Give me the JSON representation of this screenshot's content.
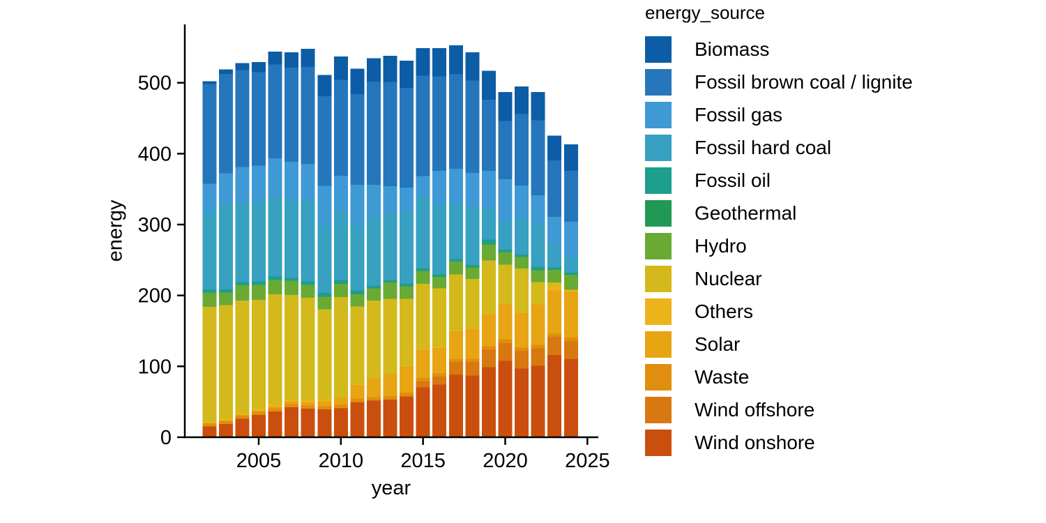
{
  "chart_data": {
    "type": "bar",
    "stacked": true,
    "title": "",
    "xlabel": "year",
    "ylabel": "energy",
    "legend_title": "energy_source",
    "legend_position": "right",
    "grid": false,
    "x": [
      2002,
      2003,
      2004,
      2005,
      2006,
      2007,
      2008,
      2009,
      2010,
      2011,
      2012,
      2013,
      2014,
      2015,
      2016,
      2017,
      2018,
      2019,
      2020,
      2021,
      2022,
      2023,
      2024
    ],
    "x_ticks": [
      2005,
      2010,
      2015,
      2020,
      2025
    ],
    "y_ticks": [
      0,
      100,
      200,
      300,
      400,
      500
    ],
    "ylim": [
      0,
      582
    ],
    "axis_color": "#000000",
    "stack_order_bottom_to_top": [
      "Wind onshore",
      "Wind offshore",
      "Waste",
      "Solar",
      "Others",
      "Nuclear",
      "Hydro",
      "Geothermal",
      "Fossil oil",
      "Fossil hard coal",
      "Fossil gas",
      "Fossil brown coal / lignite",
      "Biomass"
    ],
    "series": [
      {
        "name": "Biomass",
        "color": "#0c5da5",
        "values": [
          4.0,
          6.6,
          10.0,
          14.0,
          18.0,
          21.5,
          26.0,
          30.0,
          33.0,
          36.0,
          33.0,
          37.0,
          38.0,
          39.0,
          40.0,
          41.0,
          40.0,
          41.0,
          41.0,
          39.0,
          40.0,
          35.0,
          37.0
        ]
      },
      {
        "name": "Fossil brown coal / lignite",
        "color": "#2676bc",
        "values": [
          140.4,
          140.0,
          136.5,
          131.8,
          132.4,
          132.8,
          136.6,
          126.7,
          135.0,
          128.0,
          145.7,
          146.9,
          140.9,
          141.6,
          133.4,
          133.1,
          130.0,
          100.4,
          81.9,
          100.8,
          105.8,
          79.7,
          71.9
        ]
      },
      {
        "name": "Fossil gas",
        "color": "#3f99d5",
        "values": [
          40.0,
          43.6,
          50.1,
          51.1,
          54.9,
          53.3,
          50.0,
          55.7,
          52.0,
          57.4,
          44.3,
          37.7,
          33.1,
          29.8,
          48.2,
          49.2,
          47.2,
          53.1,
          58.9,
          46.8,
          41.0,
          38.3,
          49.7
        ]
      },
      {
        "name": "Fossil hard coal",
        "color": "#38a0c1",
        "values": [
          109.1,
          120.3,
          112.1,
          112.1,
          112.0,
          110.5,
          115.5,
          95.1,
          95.4,
          91.6,
          98.3,
          94.7,
          102.3,
          100.6,
          97.6,
          78.5,
          82.9,
          43.8,
          40.6,
          50.8,
          59.9,
          32.8,
          22.0
        ]
      },
      {
        "name": "Fossil oil",
        "color": "#1e9e8d",
        "values": [
          5.0,
          4.3,
          4.9,
          5.0,
          4.9,
          4.3,
          4.9,
          4.9,
          4.9,
          5.0,
          2.9,
          3.1,
          3.1,
          3.1,
          3.1,
          3.1,
          3.1,
          6.4,
          3.1,
          3.1,
          4.1,
          3.1,
          2.8
        ]
      },
      {
        "name": "Geothermal",
        "color": "#219853",
        "values": [
          0,
          0,
          0,
          0,
          0,
          0,
          0.1,
          0.1,
          0.1,
          0.2,
          0.2,
          0.2,
          0.2,
          0.2,
          0.2,
          0.2,
          0.2,
          0.2,
          0.2,
          0.2,
          0.2,
          0.2,
          0.2
        ]
      },
      {
        "name": "Hydro",
        "color": "#69aa34",
        "values": [
          19.6,
          17.7,
          21.4,
          21.3,
          19.9,
          19.7,
          18.2,
          18.0,
          19.2,
          17.2,
          17.5,
          23.1,
          18.3,
          18.3,
          16.4,
          18.1,
          16.4,
          22.7,
          18.0,
          16.3,
          17.0,
          18.0,
          21.4
        ]
      },
      {
        "name": "Nuclear",
        "color": "#d3b91b",
        "values": [
          162.3,
          160.5,
          158.3,
          153.2,
          155.4,
          147.9,
          144.5,
          126.9,
          141.2,
          108.7,
          108.5,
          105.7,
          95.1,
          90.8,
          82.2,
          78.1,
          68.4,
          73.8,
          54.4,
          61.0,
          29.5,
          6.0,
          0
        ]
      },
      {
        "name": "Others",
        "color": "#ebb41b",
        "values": [
          1.7,
          2.5,
          3.2,
          3.2,
          3.4,
          3.0,
          3.0,
          3.2,
          0.8,
          1.9,
          1.1,
          0.6,
          0.8,
          2.2,
          1.8,
          2.0,
          2.0,
          2.0,
          0.2,
          1.6,
          2.0,
          5.1,
          2.2
        ]
      },
      {
        "name": "Solar",
        "color": "#e7a413",
        "values": [
          0.2,
          0.3,
          0.6,
          1.3,
          2.2,
          3.1,
          4.4,
          6.6,
          9.8,
          19.6,
          26.4,
          31.0,
          36.1,
          40.0,
          36.0,
          39.4,
          42.0,
          45.0,
          50.7,
          49.0,
          57.0,
          61.0,
          65.0
        ]
      },
      {
        "name": "Waste",
        "color": "#e08e0e",
        "values": [
          4.3,
          4.5,
          4.5,
          4.5,
          4.5,
          4.5,
          4.5,
          4.5,
          4.5,
          4.5,
          4.6,
          4.6,
          4.6,
          4.6,
          4.6,
          4.6,
          4.6,
          4.6,
          5.0,
          5.0,
          5.0,
          4.6,
          5.0
        ]
      },
      {
        "name": "Wind offshore",
        "color": "#d87810",
        "values": [
          0,
          0,
          0,
          0,
          0,
          0,
          0,
          0,
          0.2,
          0.6,
          0.7,
          0.9,
          1.4,
          8.3,
          11.0,
          17.7,
          19.3,
          24.9,
          25.3,
          24.6,
          24.5,
          25.6,
          25.5
        ]
      },
      {
        "name": "Wind onshore",
        "color": "#ca4f0e",
        "values": [
          15.4,
          18.7,
          26.2,
          31.5,
          36.4,
          42.4,
          40.4,
          39.4,
          41.0,
          49.3,
          51.5,
          52.5,
          57.1,
          70.5,
          74.5,
          88.0,
          86.9,
          99.1,
          107.7,
          96.8,
          101.0,
          116.0,
          110.3
        ]
      }
    ]
  }
}
